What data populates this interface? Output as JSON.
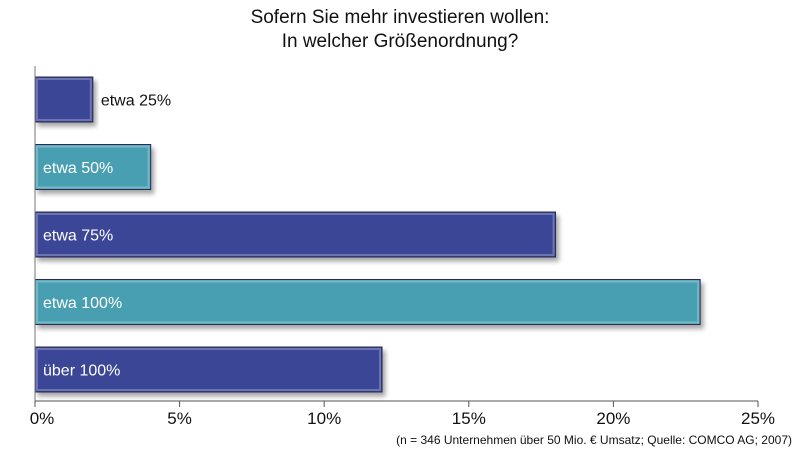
{
  "chart_data": {
    "type": "bar",
    "orientation": "horizontal",
    "title_line1": "Sofern Sie mehr investieren wollen:",
    "title_line2": "In welcher Größenordnung?",
    "categories": [
      "etwa 25%",
      "etwa 50%",
      "etwa 75%",
      "etwa 100%",
      "über 100%"
    ],
    "values": [
      2,
      4,
      18,
      23,
      12
    ],
    "value_unit": "%",
    "xlim": [
      0,
      25
    ],
    "x_ticks": [
      "0%",
      "5%",
      "10%",
      "15%",
      "20%",
      "25%"
    ],
    "bar_colors": [
      "#3a4796",
      "#4a9fb2",
      "#3a4796",
      "#4a9fb2",
      "#3a4796"
    ],
    "grid": false,
    "legend": "none",
    "footnote": "(n = 346 Unternehmen über 50 Mio. € Umsatz; Quelle: COMCO AG; 2007)"
  }
}
